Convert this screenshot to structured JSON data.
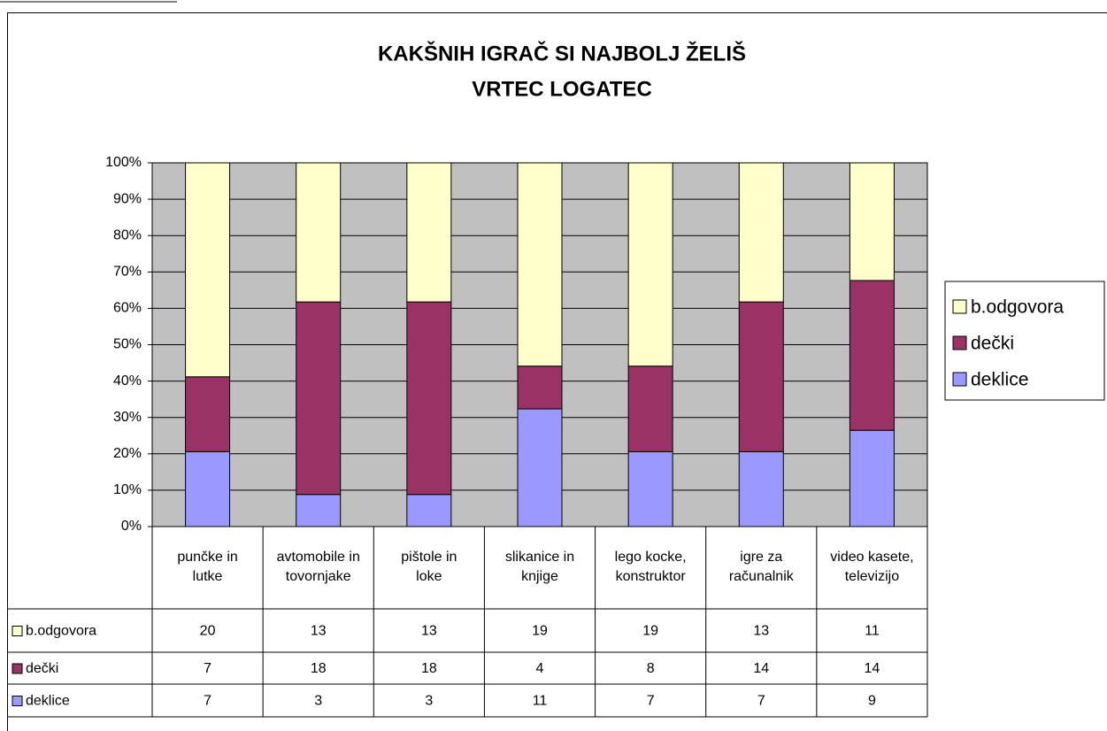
{
  "chart_data": {
    "type": "stacked_bar_100",
    "title": [
      "KAKŠNIH IGRAČ SI NAJBOLJ ŽELIŠ",
      "VRTEC LOGATEC"
    ],
    "categories": [
      "punčke in lutke",
      "avtomobile in tovornjake",
      "pištole in loke",
      "slikanice in knjige",
      "lego kocke, konstruktor",
      "igre za računalnik",
      "video kasete, televizijo"
    ],
    "series": [
      {
        "name": "deklice",
        "color": "#9999ff",
        "values": [
          7,
          3,
          3,
          11,
          7,
          7,
          9
        ]
      },
      {
        "name": "dečki",
        "color": "#993366",
        "values": [
          7,
          18,
          18,
          4,
          8,
          14,
          14
        ]
      },
      {
        "name": "b.odgovora",
        "color": "#ffffcc",
        "values": [
          20,
          13,
          13,
          19,
          19,
          13,
          11
        ]
      }
    ],
    "ylim": [
      0,
      100
    ],
    "yticks": [
      {
        "value": 0,
        "label": "0%"
      },
      {
        "value": 10,
        "label": "10%"
      },
      {
        "value": 20,
        "label": "20%"
      },
      {
        "value": 30,
        "label": "30%"
      },
      {
        "value": 40,
        "label": "40%"
      },
      {
        "value": 50,
        "label": "50%"
      },
      {
        "value": 60,
        "label": "60%"
      },
      {
        "value": 70,
        "label": "70%"
      },
      {
        "value": 80,
        "label": "80%"
      },
      {
        "value": 90,
        "label": "90%"
      },
      {
        "value": 100,
        "label": "100%"
      }
    ],
    "grid": true,
    "legend": "right",
    "plot_background": "#c0c0c0",
    "data_table": true
  }
}
